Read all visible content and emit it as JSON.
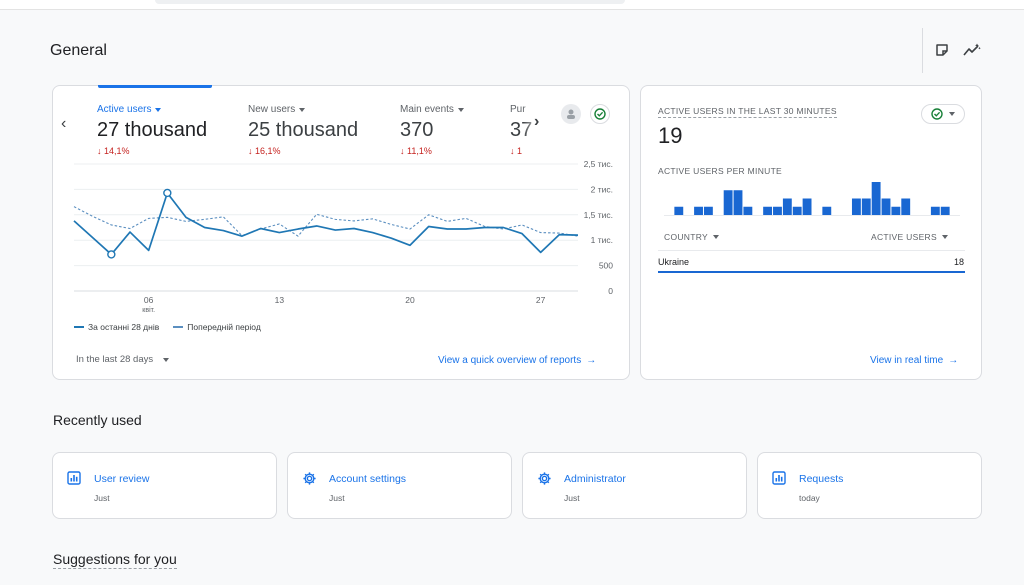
{
  "header": {
    "title": "General"
  },
  "overview": {
    "metrics": [
      {
        "label": "Active users",
        "value": "27 thousand",
        "change": "14,1%"
      },
      {
        "label": "New users",
        "value": "25 thousand",
        "change": "16,1%"
      },
      {
        "label": "Main events",
        "value": "370",
        "change": "11,1%"
      },
      {
        "label": "Pur",
        "value": "37",
        "change": "1"
      }
    ],
    "date_range": "In the last 28 days",
    "link": "View a quick overview of reports"
  },
  "chart_data": {
    "type": "line",
    "x": [
      0,
      1,
      2,
      3,
      4,
      5,
      6,
      7,
      8,
      9,
      10,
      11,
      12,
      13,
      14,
      15,
      16,
      17,
      18,
      19,
      20,
      21,
      22,
      23,
      24,
      25,
      26,
      27
    ],
    "x_ticks": [
      {
        "at": 4,
        "label": "06",
        "sub": "квіт."
      },
      {
        "at": 11,
        "label": "13"
      },
      {
        "at": 18,
        "label": "20"
      },
      {
        "at": 25,
        "label": "27"
      }
    ],
    "y_ticks": [
      "0",
      "500",
      "1 тис.",
      "1,5 тис.",
      "2 тис.",
      "2,5 тис."
    ],
    "ylim": [
      0,
      2500
    ],
    "grid": true,
    "legend_position": "bottom-left",
    "series": [
      {
        "name": "За останні 28 днів",
        "style": "solid",
        "color": "#1f77b4",
        "values": [
          1380,
          1050,
          720,
          1160,
          800,
          1930,
          1450,
          1250,
          1190,
          1080,
          1230,
          1150,
          1220,
          1280,
          1200,
          1230,
          1150,
          1040,
          900,
          1270,
          1220,
          1220,
          1250,
          1250,
          1130,
          760,
          1110,
          1100
        ],
        "markers": [
          2,
          5
        ]
      },
      {
        "name": "Попередній період",
        "style": "dashed",
        "color": "#5b8fc0",
        "values": [
          1660,
          1470,
          1300,
          1230,
          1430,
          1450,
          1370,
          1410,
          1460,
          1090,
          1220,
          1320,
          1080,
          1510,
          1410,
          1380,
          1420,
          1310,
          1220,
          1500,
          1370,
          1430,
          1270,
          1220,
          1300,
          1150,
          1140,
          1080
        ]
      }
    ]
  },
  "realtime": {
    "title": "ACTIVE USERS IN THE LAST 30 MINUTES",
    "value": "19",
    "per_minute_label": "ACTIVE USERS PER MINUTE",
    "per_minute": [
      0,
      1,
      0,
      1,
      1,
      0,
      3,
      3,
      1,
      0,
      1,
      1,
      2,
      1,
      2,
      0,
      1,
      0,
      0,
      2,
      2,
      4,
      2,
      1,
      2,
      0,
      0,
      1,
      1,
      0
    ],
    "table": {
      "col_country": "COUNTRY",
      "col_users": "ACTIVE USERS",
      "rows": [
        {
          "country": "Ukraine",
          "users": "18"
        }
      ]
    },
    "link": "View in real time"
  },
  "recently_used": {
    "title": "Recently used",
    "items": [
      {
        "label": "User review",
        "sub": "Just",
        "icon": "report-icon"
      },
      {
        "label": "Account settings",
        "sub": "Just",
        "icon": "gear-icon"
      },
      {
        "label": "Administrator",
        "sub": "Just",
        "icon": "gear-icon"
      },
      {
        "label": "Requests",
        "sub": "today",
        "icon": "report-icon"
      }
    ]
  },
  "suggestions": {
    "title": "Suggestions for you"
  },
  "colors": {
    "accent": "#1a73e8",
    "negative": "#c5221f",
    "success": "#188038",
    "bar": "#1967d2"
  }
}
